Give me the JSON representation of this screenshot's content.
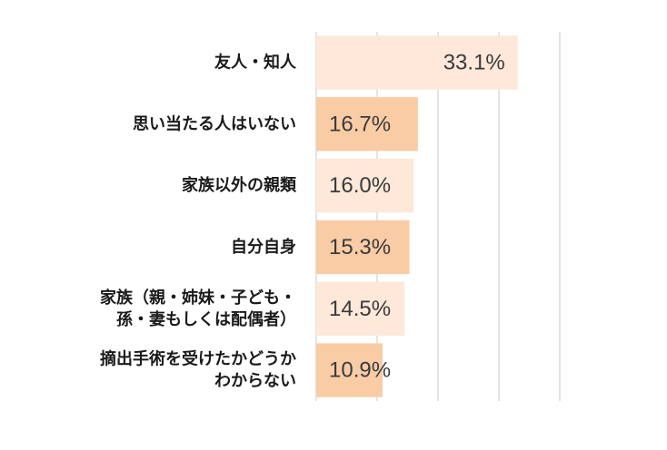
{
  "chart_data": {
    "type": "bar",
    "orientation": "horizontal",
    "categories": [
      [
        "友人・知人"
      ],
      [
        "思い当たる人はいない"
      ],
      [
        "家族以外の親類"
      ],
      [
        "自分自身"
      ],
      [
        "家族（親・姉妹・子ども・",
        "孫・妻もしくは配偶者）"
      ],
      [
        "摘出手術を受けたかどうか",
        "わからない"
      ]
    ],
    "values": [
      33.1,
      16.7,
      16.0,
      15.3,
      14.5,
      10.9
    ],
    "value_labels": [
      "33.1%",
      "16.7%",
      "16.0%",
      "15.3%",
      "14.5%",
      "10.9%"
    ],
    "xlim": [
      0,
      40
    ],
    "grid": true,
    "colors": [
      "#fde8da",
      "#f9cca6",
      "#fde8da",
      "#f9cca6",
      "#fde8da",
      "#f9cca6"
    ],
    "grid_color": "#c8c8c8",
    "title": "",
    "xlabel": "",
    "ylabel": ""
  }
}
